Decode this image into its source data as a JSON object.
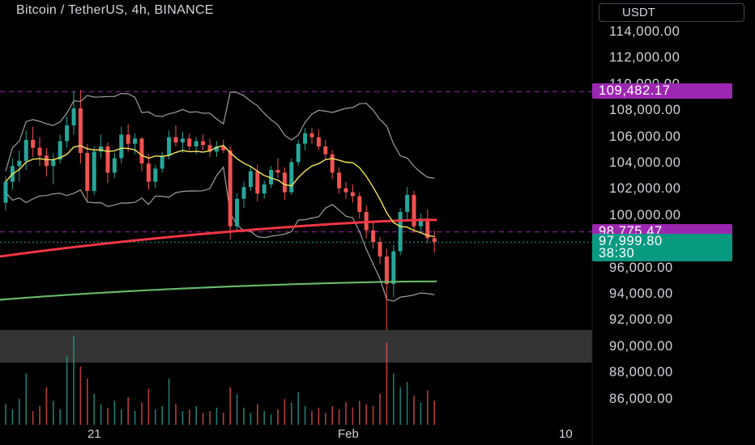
{
  "header": {
    "title": "Bitcoin / TetherUS, 4h, BINANCE",
    "currency": "USDT"
  },
  "colors": {
    "up": "#26a69a",
    "down": "#ef5350",
    "resistance": "#9c27b0",
    "support": "#26a69a",
    "ema_slow": "#66bb6a",
    "ema_mid": "#f23645",
    "ma_yellow": "#f7e65a",
    "bands": "#9e9e9e"
  },
  "chart_data": {
    "type": "candlestick",
    "symbol": "Bitcoin / TetherUS",
    "interval": "4h",
    "exchange": "BINANCE",
    "y_ticks": [
      114000,
      112000,
      110000,
      108000,
      106000,
      104000,
      102000,
      100000,
      98000,
      96000,
      94000,
      92000,
      90000,
      88000,
      86000
    ],
    "y_tick_labels": [
      "114,000.00",
      "112,000.00",
      "110,000.00",
      "108,000.00",
      "106,000.00",
      "104,000.00",
      "102,000.00",
      "100,000.00",
      "98,000.00",
      "96,000.00",
      "94,000.00",
      "92,000.00",
      "90,000.00",
      "88,000.00",
      "86,000.00"
    ],
    "ylim": [
      84800,
      115300
    ],
    "x_labels": [
      "21",
      "Feb",
      "10"
    ],
    "price_tags": [
      {
        "label": "109,482.17",
        "value": 109482.17,
        "color": "#9c27b0"
      },
      {
        "label": "98,775.47",
        "value": 98775.47,
        "color": "#9c27b0"
      }
    ],
    "last_price": {
      "label": "97,999.80",
      "countdown": "38:30",
      "value": 97999.8,
      "color": "#089981"
    },
    "horizontal_lines": [
      {
        "value": 109482.17,
        "style": "dashed",
        "color": "#9c27b0"
      },
      {
        "value": 98775.47,
        "style": "dashed",
        "color": "#9c27b0"
      },
      {
        "value": 97999.8,
        "style": "dotted",
        "color": "#26a69a"
      }
    ],
    "zone": {
      "from": 88800,
      "to": 91300,
      "color": "#3a3a3a"
    },
    "ohlc": [
      [
        101000,
        103000,
        100400,
        102600
      ],
      [
        102600,
        104400,
        102000,
        103800
      ],
      [
        103800,
        105000,
        102600,
        104200
      ],
      [
        104200,
        106500,
        103500,
        105800
      ],
      [
        105800,
        106800,
        104500,
        105200
      ],
      [
        105200,
        106000,
        103800,
        104600
      ],
      [
        104600,
        105200,
        103000,
        103800
      ],
      [
        103800,
        104800,
        102400,
        104300
      ],
      [
        104300,
        106200,
        104000,
        105700
      ],
      [
        105700,
        107600,
        105200,
        106900
      ],
      [
        106900,
        109500,
        106200,
        108200
      ],
      [
        108200,
        109600,
        104000,
        104800
      ],
      [
        104800,
        105500,
        101000,
        101900
      ],
      [
        101900,
        105300,
        101600,
        104900
      ],
      [
        104900,
        106200,
        104400,
        105300
      ],
      [
        105300,
        105600,
        102500,
        103300
      ],
      [
        103300,
        104800,
        102900,
        104400
      ],
      [
        104400,
        106800,
        104000,
        106200
      ],
      [
        106200,
        107000,
        104900,
        105500
      ],
      [
        105500,
        106300,
        104700,
        105900
      ],
      [
        105900,
        106000,
        103400,
        104000
      ],
      [
        104000,
        104700,
        102000,
        102600
      ],
      [
        102600,
        103900,
        102100,
        103600
      ],
      [
        103600,
        104900,
        103300,
        104600
      ],
      [
        104600,
        106500,
        104300,
        106000
      ],
      [
        106000,
        106900,
        105300,
        105600
      ],
      [
        105600,
        106400,
        104800,
        105900
      ],
      [
        105900,
        106300,
        105000,
        105300
      ],
      [
        105300,
        106000,
        104700,
        105700
      ],
      [
        105700,
        106200,
        105000,
        105400
      ],
      [
        105400,
        105900,
        104500,
        104900
      ],
      [
        104900,
        105700,
        104500,
        105300
      ],
      [
        105300,
        105800,
        104800,
        105000
      ],
      [
        105000,
        105300,
        98200,
        99200
      ],
      [
        99200,
        101700,
        98800,
        101300
      ],
      [
        101300,
        102600,
        100600,
        102200
      ],
      [
        102200,
        103800,
        101900,
        103400
      ],
      [
        103400,
        103900,
        101100,
        101700
      ],
      [
        101700,
        102700,
        101300,
        102400
      ],
      [
        102400,
        103800,
        102100,
        103500
      ],
      [
        103500,
        104400,
        102900,
        103300
      ],
      [
        103300,
        103700,
        101200,
        101800
      ],
      [
        101800,
        104400,
        101600,
        104100
      ],
      [
        104100,
        105800,
        103800,
        105500
      ],
      [
        105500,
        106700,
        105000,
        106300
      ],
      [
        106300,
        106700,
        105500,
        106000
      ],
      [
        106000,
        106600,
        105000,
        105300
      ],
      [
        105300,
        105800,
        104300,
        104700
      ],
      [
        104700,
        105000,
        102800,
        103300
      ],
      [
        103300,
        103700,
        101700,
        102100
      ],
      [
        102100,
        102600,
        101300,
        101800
      ],
      [
        101800,
        102400,
        101000,
        101500
      ],
      [
        101500,
        101800,
        99800,
        100300
      ],
      [
        100300,
        100800,
        98300,
        98900
      ],
      [
        98900,
        99500,
        97500,
        98000
      ],
      [
        98000,
        98400,
        96300,
        96900
      ],
      [
        96900,
        97500,
        91300,
        94800
      ],
      [
        94800,
        97800,
        93800,
        97300
      ],
      [
        97300,
        100600,
        97000,
        100300
      ],
      [
        100300,
        102200,
        99700,
        101600
      ],
      [
        101600,
        101900,
        98700,
        99200
      ],
      [
        99200,
        100200,
        98800,
        99800
      ],
      [
        99800,
        100500,
        97900,
        98300
      ],
      [
        98300,
        98900,
        97200,
        98000
      ]
    ],
    "volumes": [
      12,
      9,
      15,
      30,
      8,
      11,
      22,
      14,
      9,
      40,
      52,
      34,
      27,
      18,
      12,
      10,
      14,
      9,
      16,
      8,
      13,
      21,
      9,
      11,
      27,
      12,
      8,
      9,
      11,
      7,
      8,
      10,
      7,
      22,
      18,
      10,
      7,
      12,
      8,
      6,
      9,
      15,
      13,
      19,
      11,
      8,
      10,
      7,
      11,
      9,
      13,
      10,
      14,
      12,
      11,
      18,
      48,
      30,
      22,
      25,
      17,
      13,
      20,
      14
    ],
    "ema_slow": {
      "from": 93600,
      "to": 95000,
      "name": ""
    },
    "ema_mid": {
      "from": 96900,
      "to": 99700,
      "name": ""
    }
  }
}
